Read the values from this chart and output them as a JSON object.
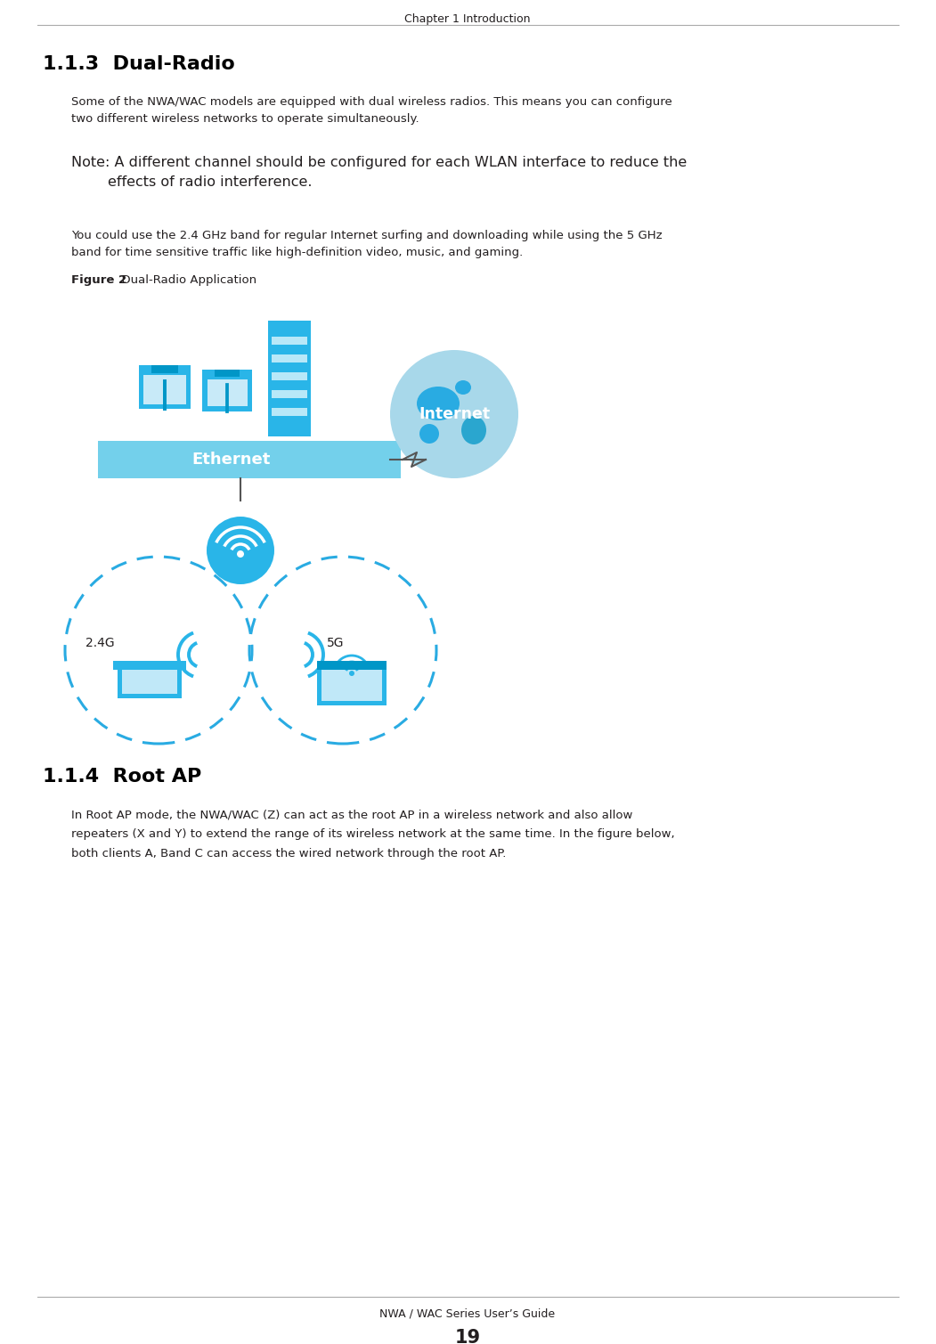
{
  "page_title": "Chapter 1 Introduction",
  "footer_text": "NWA / WAC Series User’s Guide",
  "page_number": "19",
  "section_title": "1.1.3  Dual-Radio",
  "section_title2": "1.1.4  Root AP",
  "body_text1": "Some of the NWA/WAC models are equipped with dual wireless radios. This means you can configure\ntwo different wireless networks to operate simultaneously.",
  "note_text": "Note: A different channel should be configured for each WLAN interface to reduce the\n        effects of radio interference.",
  "body_text2": "You could use the 2.4 GHz band for regular Internet surfing and downloading while using the 5 GHz\nband for time sensitive traffic like high-definition video, music, and gaming.",
  "figure_label": "Figure 2",
  "figure_caption": "  Dual-Radio Application",
  "bg_color": "#ffffff",
  "text_color": "#231f20",
  "title_color": "#000000",
  "cyan_dark": "#00aeef",
  "cyan_light": "#a8d8ea",
  "cyan_mid": "#29b5e8",
  "cyan_deep": "#0096c7",
  "dashed_circle_color": "#29abe2",
  "globe_bg": "#a8d8ea",
  "globe_fg": "#29abe2",
  "ethernet_bar_color": "#29b5e8",
  "white": "#ffffff",
  "line_color": "#555555",
  "header_line_color": "#aaaaaa"
}
